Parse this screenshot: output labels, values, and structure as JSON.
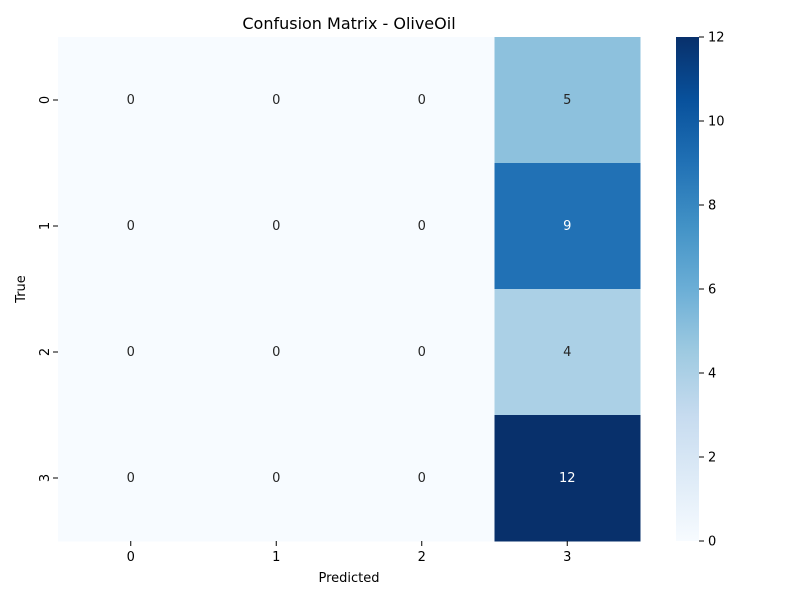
{
  "chart_data": {
    "type": "heatmap",
    "title": "Confusion Matrix - OliveOil",
    "xlabel": "Predicted",
    "ylabel": "True",
    "x_categories": [
      "0",
      "1",
      "2",
      "3"
    ],
    "y_categories": [
      "0",
      "1",
      "2",
      "3"
    ],
    "values": [
      [
        0,
        0,
        0,
        5
      ],
      [
        0,
        0,
        0,
        9
      ],
      [
        0,
        0,
        0,
        4
      ],
      [
        0,
        0,
        0,
        12
      ]
    ],
    "colormap": "Blues",
    "value_range": [
      0,
      12
    ],
    "colorbar_ticks": [
      "0",
      "2",
      "4",
      "6",
      "8",
      "10",
      "12"
    ],
    "annotations": true,
    "grid": false
  }
}
